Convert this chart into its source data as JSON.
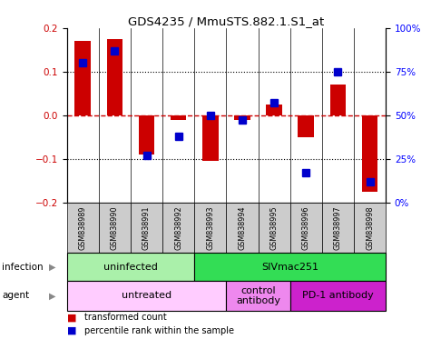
{
  "title": "GDS4235 / MmuSTS.882.1.S1_at",
  "samples": [
    "GSM838989",
    "GSM838990",
    "GSM838991",
    "GSM838992",
    "GSM838993",
    "GSM838994",
    "GSM838995",
    "GSM838996",
    "GSM838997",
    "GSM838998"
  ],
  "red_values": [
    0.17,
    0.175,
    -0.09,
    -0.01,
    -0.105,
    -0.01,
    0.025,
    -0.05,
    0.07,
    -0.175
  ],
  "blue_values_pct": [
    80,
    87,
    27,
    38,
    50,
    47,
    57,
    17,
    75,
    12
  ],
  "ylim_red": [
    -0.2,
    0.2
  ],
  "ylim_blue": [
    0,
    100
  ],
  "yticks_red": [
    -0.2,
    -0.1,
    0.0,
    0.1,
    0.2
  ],
  "yticks_blue": [
    0,
    25,
    50,
    75,
    100
  ],
  "ytick_labels_blue": [
    "0%",
    "25%",
    "50%",
    "75%",
    "100%"
  ],
  "infection_groups": [
    {
      "label": "uninfected",
      "start": 0,
      "end": 4,
      "color": "#aaf0aa"
    },
    {
      "label": "SIVmac251",
      "start": 4,
      "end": 10,
      "color": "#33dd55"
    }
  ],
  "agent_groups": [
    {
      "label": "untreated",
      "start": 0,
      "end": 5,
      "color": "#ffccff"
    },
    {
      "label": "control\nantibody",
      "start": 5,
      "end": 7,
      "color": "#ee88ee"
    },
    {
      "label": "PD-1 antibody",
      "start": 7,
      "end": 10,
      "color": "#cc22cc"
    }
  ],
  "red_color": "#cc0000",
  "blue_color": "#0000cc",
  "hline_color": "#cc0000",
  "dotted_color": "black",
  "bar_width": 0.5,
  "blue_marker_size": 6,
  "sample_bg_color": "#cccccc"
}
